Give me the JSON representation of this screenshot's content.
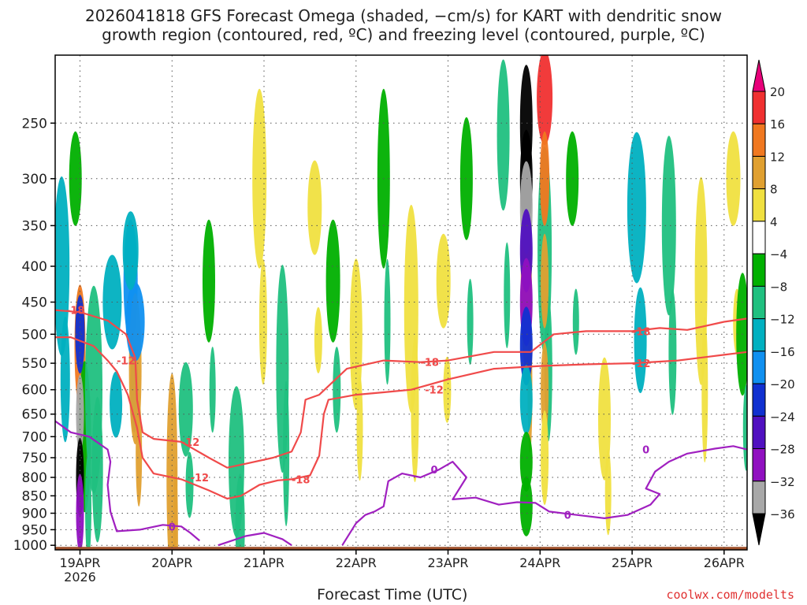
{
  "title_line1": "2026041818 GFS Forecast Omega (shaded, −cm/s) for KART with dendritic snow",
  "title_line2": "growth region (contoured, red, ºC) and freezing level (contoured, purple, ºC)",
  "xlabel": "Forecast Time (UTC)",
  "credit": "coolwx.com/modelts",
  "colors": {
    "dsgz": "#f04a4a",
    "freezing": "#a020c0",
    "ground": "#a0522d",
    "grid": "#555555"
  },
  "chart_data": {
    "type": "heatmap",
    "title": "2026041818 GFS Forecast Omega (shaded, −cm/s) for KART with dendritic snow growth region (contoured, red, ºC) and freezing level (contoured, purple, ºC)",
    "xlabel": "Forecast Time (UTC)",
    "ylabel": "",
    "x_ticks": [
      "19APR",
      "20APR",
      "21APR",
      "22APR",
      "23APR",
      "24APR",
      "25APR",
      "26APR"
    ],
    "x_sublabel": "2026",
    "x_range_days": [
      -0.27,
      7.25
    ],
    "y_ticks": [
      250,
      300,
      350,
      400,
      450,
      500,
      550,
      600,
      650,
      700,
      750,
      800,
      850,
      900,
      950,
      1000
    ],
    "y_range_hPa": [
      200,
      1015
    ],
    "colorbar": {
      "labels": [
        "20",
        "16",
        "12",
        "8",
        "4",
        "−4",
        "−8",
        "−12",
        "−16",
        "−20",
        "−24",
        "−28",
        "−32",
        "−36"
      ],
      "colors": [
        "#e8007a",
        "#f03030",
        "#f07820",
        "#e0a030",
        "#f0e040",
        "#ffffff",
        "#00b000",
        "#20c080",
        "#00b0c0",
        "#1090f0",
        "#1030d0",
        "#5010c0",
        "#9010c0",
        "#a8a8a8",
        "#000000"
      ]
    },
    "contour_labels": {
      "dsgz": [
        "-18",
        "-12",
        "-12",
        "-18",
        "-12",
        "-18",
        "-12",
        "-18",
        "-12"
      ],
      "freezing": [
        "0",
        "0",
        "0",
        "0"
      ]
    },
    "dsgz_minus12": [
      [
        -0.27,
        505
      ],
      [
        -0.1,
        505
      ],
      [
        0.15,
        520
      ],
      [
        0.3,
        545
      ],
      [
        0.4,
        565
      ],
      [
        0.52,
        610
      ],
      [
        0.62,
        680
      ],
      [
        0.68,
        750
      ],
      [
        0.8,
        790
      ],
      [
        1.1,
        805
      ],
      [
        1.4,
        835
      ],
      [
        1.6,
        858
      ],
      [
        1.75,
        850
      ],
      [
        1.95,
        820
      ],
      [
        2.15,
        808
      ],
      [
        2.3,
        805
      ],
      [
        2.5,
        795
      ],
      [
        2.6,
        745
      ],
      [
        2.65,
        650
      ],
      [
        2.7,
        620
      ],
      [
        3.0,
        610
      ],
      [
        3.3,
        605
      ],
      [
        3.6,
        600
      ],
      [
        4.0,
        580
      ],
      [
        4.5,
        560
      ],
      [
        5.0,
        555
      ],
      [
        5.5,
        552
      ],
      [
        6.0,
        550
      ],
      [
        6.5,
        545
      ],
      [
        7.0,
        535
      ],
      [
        7.25,
        530
      ]
    ],
    "dsgz_minus18": [
      [
        -0.27,
        462
      ],
      [
        0.0,
        465
      ],
      [
        0.3,
        478
      ],
      [
        0.5,
        500
      ],
      [
        0.6,
        540
      ],
      [
        0.62,
        620
      ],
      [
        0.68,
        690
      ],
      [
        0.8,
        705
      ],
      [
        1.1,
        712
      ],
      [
        1.4,
        750
      ],
      [
        1.6,
        775
      ],
      [
        1.8,
        765
      ],
      [
        2.1,
        750
      ],
      [
        2.3,
        735
      ],
      [
        2.4,
        690
      ],
      [
        2.45,
        620
      ],
      [
        2.6,
        610
      ],
      [
        2.9,
        560
      ],
      [
        3.3,
        545
      ],
      [
        3.7,
        548
      ],
      [
        4.0,
        545
      ],
      [
        4.5,
        530
      ],
      [
        4.9,
        530
      ],
      [
        5.15,
        500
      ],
      [
        5.5,
        495
      ],
      [
        6.0,
        495
      ],
      [
        6.3,
        490
      ],
      [
        6.6,
        493
      ],
      [
        7.0,
        480
      ],
      [
        7.25,
        475
      ]
    ],
    "freezing_0a": [
      [
        -0.27,
        665
      ],
      [
        -0.1,
        690
      ],
      [
        0.1,
        700
      ],
      [
        0.3,
        730
      ],
      [
        0.33,
        760
      ],
      [
        0.3,
        820
      ],
      [
        0.33,
        895
      ],
      [
        0.4,
        955
      ],
      [
        0.65,
        950
      ],
      [
        0.9,
        935
      ],
      [
        1.1,
        940
      ],
      [
        1.2,
        960
      ],
      [
        1.3,
        985
      ]
    ],
    "freezing_0b": [
      [
        1.5,
        1000
      ],
      [
        1.8,
        970
      ],
      [
        2.0,
        960
      ],
      [
        2.2,
        980
      ],
      [
        2.3,
        1000
      ]
    ],
    "freezing_0c": [
      [
        2.85,
        1000
      ],
      [
        3.0,
        930
      ],
      [
        3.1,
        905
      ],
      [
        3.2,
        895
      ],
      [
        3.3,
        880
      ],
      [
        3.35,
        810
      ],
      [
        3.5,
        790
      ],
      [
        3.7,
        800
      ],
      [
        3.9,
        780
      ],
      [
        4.05,
        760
      ],
      [
        4.2,
        800
      ],
      [
        4.05,
        860
      ],
      [
        4.3,
        855
      ],
      [
        4.55,
        875
      ],
      [
        4.75,
        868
      ],
      [
        4.95,
        870
      ],
      [
        5.1,
        895
      ],
      [
        5.4,
        905
      ],
      [
        5.7,
        915
      ],
      [
        5.95,
        905
      ],
      [
        6.2,
        875
      ],
      [
        6.3,
        845
      ],
      [
        6.15,
        830
      ],
      [
        6.25,
        785
      ],
      [
        6.4,
        760
      ],
      [
        6.6,
        740
      ],
      [
        6.9,
        728
      ],
      [
        7.1,
        722
      ],
      [
        7.25,
        730
      ]
    ]
  }
}
